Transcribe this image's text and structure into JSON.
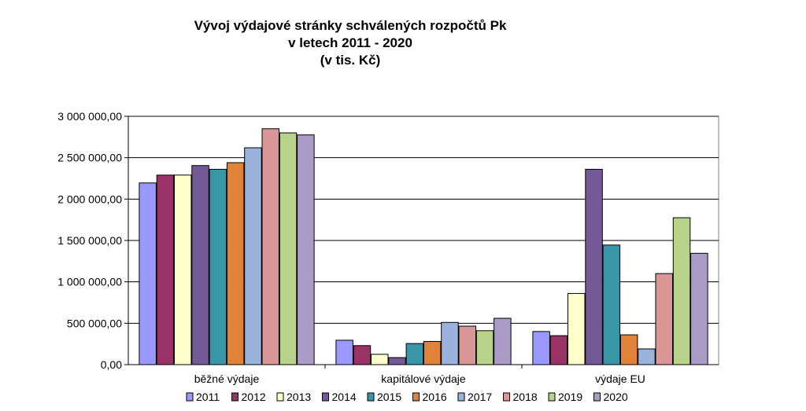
{
  "chart_data": {
    "type": "bar",
    "title_lines": [
      "Vývoj výdajové stránky schválených rozpočtů Pk",
      "v letech 2011 - 2020",
      "(v tis. Kč)"
    ],
    "categories": [
      "běžné výdaje",
      "kapitálové výdaje",
      "výdaje EU"
    ],
    "series": [
      {
        "name": "2011",
        "color": "#9999ff",
        "values": [
          2195000,
          295000,
          400000
        ]
      },
      {
        "name": "2012",
        "color": "#993366",
        "values": [
          2290000,
          230000,
          350000
        ]
      },
      {
        "name": "2013",
        "color": "#ffffcc",
        "values": [
          2290000,
          125000,
          860000
        ]
      },
      {
        "name": "2014",
        "color": "#735a96",
        "values": [
          2405000,
          85000,
          2360000
        ]
      },
      {
        "name": "2015",
        "color": "#3896a8",
        "values": [
          2360000,
          255000,
          1445000
        ]
      },
      {
        "name": "2016",
        "color": "#e0823a",
        "values": [
          2440000,
          280000,
          360000
        ]
      },
      {
        "name": "2017",
        "color": "#99b3dd",
        "values": [
          2620000,
          510000,
          190000
        ]
      },
      {
        "name": "2018",
        "color": "#d99695",
        "values": [
          2850000,
          465000,
          1100000
        ]
      },
      {
        "name": "2019",
        "color": "#b8d28a",
        "values": [
          2800000,
          410000,
          1775000
        ]
      },
      {
        "name": "2020",
        "color": "#aa9cc7",
        "values": [
          2775000,
          560000,
          1345000
        ]
      }
    ],
    "y_ticks": [
      "0,00",
      "500 000,00",
      "1 000 000,00",
      "1 500 000,00",
      "2 000 000,00",
      "2 500 000,00",
      "3 000 000,00"
    ],
    "ylim": [
      0,
      3000000
    ],
    "grid": true,
    "legend_position": "bottom"
  }
}
